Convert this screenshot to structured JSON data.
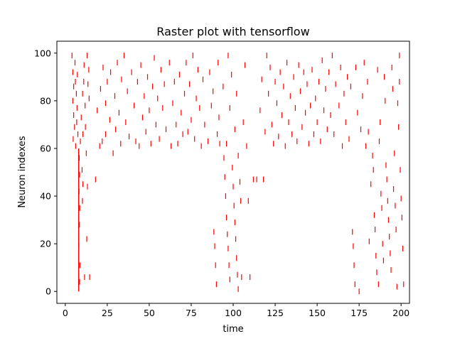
{
  "chart_data": {
    "type": "scatter",
    "marker": "vertical-tick",
    "title": "Raster plot with tensorflow",
    "xlabel": "time",
    "ylabel": "Neuron indexes",
    "xlim": [
      -5,
      205
    ],
    "ylim": [
      -5,
      105
    ],
    "xticks": [
      0,
      25,
      50,
      75,
      100,
      125,
      150,
      175,
      200
    ],
    "yticks": [
      0,
      20,
      40,
      60,
      80,
      100
    ],
    "xtick_labels": [
      "0",
      "25",
      "50",
      "75",
      "100",
      "125",
      "150",
      "175",
      "200"
    ],
    "ytick_labels": [
      "0",
      "20",
      "40",
      "60",
      "80",
      "100"
    ],
    "grid": false,
    "legend": "none",
    "color": "#ff0000",
    "synchronous_event": {
      "x": 8,
      "y_range": [
        0,
        60
      ]
    },
    "spikes": [
      [
        4,
        99
      ],
      [
        4.5,
        92
      ],
      [
        5,
        86
      ],
      [
        4.5,
        80
      ],
      [
        5,
        74
      ],
      [
        5.5,
        69
      ],
      [
        4.7,
        64
      ],
      [
        5.8,
        96
      ],
      [
        6,
        88
      ],
      [
        6.2,
        61
      ],
      [
        6.6,
        83
      ],
      [
        7,
        77
      ],
      [
        7.2,
        91
      ],
      [
        6.8,
        71
      ],
      [
        7.5,
        66
      ],
      [
        8.3,
        56
      ],
      [
        8.5,
        49
      ],
      [
        8.2,
        42
      ],
      [
        8.6,
        35
      ],
      [
        8.4,
        28
      ],
      [
        8.1,
        19
      ],
      [
        8.7,
        11
      ],
      [
        8.5,
        4
      ],
      [
        9,
        63
      ],
      [
        9.5,
        73
      ],
      [
        10,
        51
      ],
      [
        10.2,
        38
      ],
      [
        10.5,
        45
      ],
      [
        10.3,
        83
      ],
      [
        10.5,
        66
      ],
      [
        11,
        88
      ],
      [
        11.2,
        95
      ],
      [
        11.5,
        6
      ],
      [
        11.8,
        78
      ],
      [
        12,
        69
      ],
      [
        12.5,
        58
      ],
      [
        13,
        99
      ],
      [
        12.8,
        22
      ],
      [
        13.2,
        44
      ],
      [
        13.5,
        87
      ],
      [
        14,
        93
      ],
      [
        14.5,
        6
      ],
      [
        14.2,
        81
      ],
      [
        18,
        47
      ],
      [
        19,
        76
      ],
      [
        20.5,
        61
      ],
      [
        21,
        85
      ],
      [
        22,
        63
      ],
      [
        22.5,
        94
      ],
      [
        24,
        66
      ],
      [
        24,
        79
      ],
      [
        25,
        88
      ],
      [
        26.5,
        72
      ],
      [
        27,
        92
      ],
      [
        28.5,
        58
      ],
      [
        29.5,
        82
      ],
      [
        30,
        68
      ],
      [
        31,
        96
      ],
      [
        32,
        75
      ],
      [
        33,
        62
      ],
      [
        33.5,
        89
      ],
      [
        35,
        99
      ],
      [
        36,
        71
      ],
      [
        37,
        84
      ],
      [
        38,
        65
      ],
      [
        39.5,
        92
      ],
      [
        41,
        78
      ],
      [
        42,
        63
      ],
      [
        43,
        88
      ],
      [
        44,
        61
      ],
      [
        45,
        95
      ],
      [
        46,
        73
      ],
      [
        47,
        82
      ],
      [
        48,
        67
      ],
      [
        49,
        90
      ],
      [
        50,
        76
      ],
      [
        51,
        62
      ],
      [
        52,
        86
      ],
      [
        53,
        98
      ],
      [
        54,
        70
      ],
      [
        55,
        81
      ],
      [
        56,
        64
      ],
      [
        57,
        93
      ],
      [
        58,
        77
      ],
      [
        59,
        87
      ],
      [
        60,
        68
      ],
      [
        62,
        96
      ],
      [
        63,
        61
      ],
      [
        64,
        79
      ],
      [
        65,
        88
      ],
      [
        66,
        70
      ],
      [
        67,
        62
      ],
      [
        68,
        91
      ],
      [
        69,
        75
      ],
      [
        70,
        66
      ],
      [
        71,
        83
      ],
      [
        72,
        96
      ],
      [
        73,
        67
      ],
      [
        74,
        87
      ],
      [
        75,
        72
      ],
      [
        76,
        99
      ],
      [
        77,
        64
      ],
      [
        78,
        81
      ],
      [
        79,
        93
      ],
      [
        80,
        77
      ],
      [
        81,
        61
      ],
      [
        82,
        89
      ],
      [
        83,
        70
      ],
      [
        85,
        63
      ],
      [
        86,
        92
      ],
      [
        87,
        78
      ],
      [
        88,
        84
      ],
      [
        88.5,
        25
      ],
      [
        89,
        19
      ],
      [
        89.5,
        11
      ],
      [
        90,
        3
      ],
      [
        90.5,
        66
      ],
      [
        91,
        96
      ],
      [
        91.5,
        73
      ],
      [
        92,
        62
      ],
      [
        94,
        86
      ],
      [
        94.5,
        56
      ],
      [
        95,
        48
      ],
      [
        95.5,
        40
      ],
      [
        96,
        31
      ],
      [
        96.5,
        24
      ],
      [
        97,
        18
      ],
      [
        97.5,
        11
      ],
      [
        98,
        5
      ],
      [
        96,
        62
      ],
      [
        97,
        99
      ],
      [
        98,
        77
      ],
      [
        99,
        91
      ],
      [
        99.5,
        52
      ],
      [
        100,
        44
      ],
      [
        100.5,
        36
      ],
      [
        101,
        29
      ],
      [
        101.5,
        22
      ],
      [
        102,
        14
      ],
      [
        102.5,
        7
      ],
      [
        103,
        1
      ],
      [
        101,
        68
      ],
      [
        102,
        83
      ],
      [
        103,
        57
      ],
      [
        104,
        46
      ],
      [
        104.5,
        38
      ],
      [
        105,
        6
      ],
      [
        106,
        71
      ],
      [
        107,
        95
      ],
      [
        108,
        61
      ],
      [
        109,
        38
      ],
      [
        110,
        6
      ],
      [
        112,
        47
      ],
      [
        114,
        47
      ],
      [
        116,
        76
      ],
      [
        117,
        89
      ],
      [
        118,
        47
      ],
      [
        119,
        67
      ],
      [
        120,
        99
      ],
      [
        121,
        83
      ],
      [
        122,
        94
      ],
      [
        123,
        70
      ],
      [
        124,
        62
      ],
      [
        125,
        88
      ],
      [
        126,
        79
      ],
      [
        127,
        65
      ],
      [
        128,
        92
      ],
      [
        129,
        74
      ],
      [
        130,
        86
      ],
      [
        131,
        61
      ],
      [
        132,
        96
      ],
      [
        133,
        71
      ],
      [
        134,
        82
      ],
      [
        135,
        66
      ],
      [
        136,
        90
      ],
      [
        137,
        77
      ],
      [
        138,
        63
      ],
      [
        139,
        95
      ],
      [
        140,
        84
      ],
      [
        141,
        69
      ],
      [
        142,
        92
      ],
      [
        143,
        75
      ],
      [
        144,
        87
      ],
      [
        145,
        62
      ],
      [
        146,
        78
      ],
      [
        147,
        93
      ],
      [
        148,
        66
      ],
      [
        149,
        81
      ],
      [
        150,
        71
      ],
      [
        151,
        88
      ],
      [
        152,
        63
      ],
      [
        153,
        97
      ],
      [
        154,
        76
      ],
      [
        155,
        85
      ],
      [
        156,
        68
      ],
      [
        157,
        92
      ],
      [
        158,
        74
      ],
      [
        159,
        99
      ],
      [
        160,
        66
      ],
      [
        161,
        87
      ],
      [
        163,
        78
      ],
      [
        164,
        94
      ],
      [
        165,
        61
      ],
      [
        166,
        83
      ],
      [
        167,
        71
      ],
      [
        168,
        90
      ],
      [
        169,
        64
      ],
      [
        170,
        86
      ],
      [
        171,
        25
      ],
      [
        171.5,
        19
      ],
      [
        172,
        11
      ],
      [
        172.5,
        3
      ],
      [
        173,
        94
      ],
      [
        174,
        75
      ],
      [
        175,
        0
      ],
      [
        176,
        68
      ],
      [
        177,
        82
      ],
      [
        178,
        96
      ],
      [
        179,
        61
      ],
      [
        180,
        88
      ],
      [
        180.5,
        67
      ],
      [
        181,
        21
      ],
      [
        182,
        45
      ],
      [
        183,
        57
      ],
      [
        183.5,
        51
      ],
      [
        184,
        32
      ],
      [
        184.5,
        26
      ],
      [
        185,
        15
      ],
      [
        185.5,
        8
      ],
      [
        186,
        93
      ],
      [
        186.5,
        3
      ],
      [
        187,
        63
      ],
      [
        187.5,
        71
      ],
      [
        188,
        41
      ],
      [
        188.5,
        35
      ],
      [
        189,
        20
      ],
      [
        189.5,
        13
      ],
      [
        190,
        90
      ],
      [
        190.5,
        80
      ],
      [
        191,
        53
      ],
      [
        191.5,
        47
      ],
      [
        192,
        38
      ],
      [
        192.5,
        30
      ],
      [
        193,
        23
      ],
      [
        193.5,
        16
      ],
      [
        194,
        9
      ],
      [
        194.5,
        94
      ],
      [
        195,
        85
      ],
      [
        195.5,
        43
      ],
      [
        196,
        58
      ],
      [
        196.5,
        36
      ],
      [
        197,
        26
      ],
      [
        197.5,
        2
      ],
      [
        198,
        79
      ],
      [
        198.5,
        69
      ],
      [
        199,
        99
      ],
      [
        199.5,
        51
      ],
      [
        200,
        39
      ],
      [
        200.5,
        31
      ],
      [
        201,
        18
      ],
      [
        201.5,
        3
      ],
      [
        199,
        88
      ]
    ]
  }
}
